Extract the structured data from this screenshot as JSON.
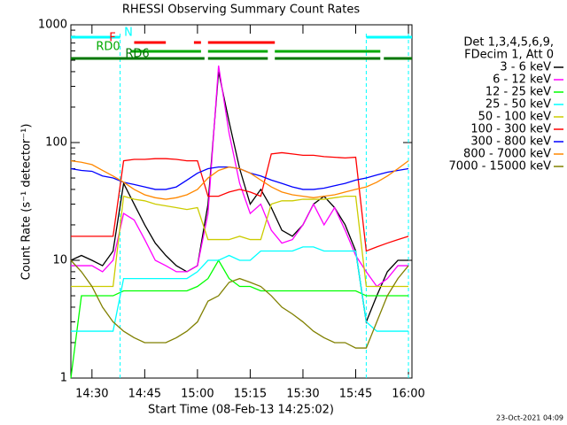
{
  "chart_data": {
    "type": "line",
    "title": "RHESSI Observing Summary Count Rates",
    "xlabel": "Start Time (08-Feb-13 14:25:02)",
    "ylabel": "Count Rate (s⁻¹ detector⁻¹)",
    "footer": "23-Oct-2021 04:09",
    "legend_header": [
      "Det 1,3,4,5,6,9,",
      "FDecim 1, Att 0"
    ],
    "ylog": true,
    "ylim": [
      1,
      1000
    ],
    "yticks": [
      1,
      10,
      100,
      1000
    ],
    "xlim": [
      "14:24",
      "16:01"
    ],
    "xticks": [
      "14:30",
      "14:45",
      "15:00",
      "15:15",
      "15:30",
      "15:45",
      "16:00"
    ],
    "vlines": [
      "14:38",
      "15:48",
      "16:00"
    ],
    "flags": [
      {
        "label": "N",
        "color": "#00ffff",
        "segments": [
          [
            "14:24",
            "14:38"
          ],
          [
            "15:48",
            "16:01"
          ]
        ]
      },
      {
        "label": "F",
        "color": "#ff0000",
        "segments": [
          [
            "14:42",
            "14:51"
          ],
          [
            "14:59",
            "15:01"
          ],
          [
            "15:03",
            "15:22"
          ]
        ]
      },
      {
        "label": "RD0",
        "color": "#00aa00",
        "segments": [
          [
            "14:41",
            "15:01"
          ],
          [
            "15:03",
            "15:20"
          ],
          [
            "15:22",
            "15:52"
          ]
        ]
      },
      {
        "label": "RD6",
        "color": "#007700",
        "segments": [
          [
            "14:24",
            "15:02"
          ],
          [
            "15:03",
            "15:20"
          ],
          [
            "15:22",
            "15:52"
          ],
          [
            "15:53",
            "16:01"
          ]
        ]
      }
    ],
    "x": [
      "14:24",
      "14:27",
      "14:30",
      "14:33",
      "14:36",
      "14:39",
      "14:42",
      "14:45",
      "14:48",
      "14:51",
      "14:54",
      "14:57",
      "15:00",
      "15:03",
      "15:06",
      "15:09",
      "15:12",
      "15:15",
      "15:18",
      "15:21",
      "15:24",
      "15:27",
      "15:30",
      "15:33",
      "15:36",
      "15:39",
      "15:42",
      "15:45",
      "15:48",
      "15:51",
      "15:54",
      "15:57",
      "16:00"
    ],
    "series": [
      {
        "name": "3 - 6 keV",
        "color": "#000000",
        "values": [
          10,
          11,
          10,
          9,
          12,
          45,
          30,
          20,
          14,
          11,
          9,
          8,
          9,
          30,
          400,
          150,
          60,
          30,
          40,
          28,
          18,
          16,
          20,
          30,
          35,
          28,
          20,
          12,
          3,
          5,
          8,
          10,
          10
        ]
      },
      {
        "name": "6 - 12 keV",
        "color": "#ff00ff",
        "values": [
          9,
          9,
          9,
          8,
          10,
          25,
          22,
          15,
          10,
          9,
          8,
          8,
          9,
          25,
          450,
          120,
          45,
          25,
          30,
          18,
          14,
          15,
          20,
          30,
          20,
          28,
          18,
          11,
          8,
          6,
          7,
          9,
          9
        ]
      },
      {
        "name": "12 - 25 keV",
        "color": "#00ff00",
        "values": [
          1,
          5,
          5,
          5,
          5,
          5.5,
          5.5,
          5.5,
          5.5,
          5.5,
          5.5,
          5.5,
          6,
          7,
          10,
          7,
          6,
          6,
          5.5,
          5.5,
          5.5,
          5.5,
          5.5,
          5.5,
          5.5,
          5.5,
          5.5,
          5.5,
          5,
          5,
          5,
          5,
          5
        ]
      },
      {
        "name": "25 - 50 keV",
        "color": "#00ffff",
        "values": [
          2.5,
          2.5,
          2.5,
          2.5,
          2.5,
          7,
          7,
          7,
          7,
          7,
          7,
          7,
          8,
          10,
          10,
          11,
          10,
          10,
          12,
          12,
          12,
          12,
          13,
          13,
          12,
          12,
          12,
          12,
          3,
          2.5,
          2.5,
          2.5,
          2.5
        ]
      },
      {
        "name": "50 - 100 keV",
        "color": "#cccc00",
        "values": [
          6,
          6,
          6,
          6,
          6,
          35,
          33,
          32,
          30,
          29,
          28,
          27,
          28,
          15,
          15,
          15,
          16,
          15,
          15,
          30,
          32,
          32,
          33,
          33,
          33,
          34,
          35,
          35,
          6,
          6,
          6,
          6,
          6
        ]
      },
      {
        "name": "100 - 300 keV",
        "color": "#ff0000",
        "values": [
          16,
          16,
          16,
          16,
          16,
          70,
          72,
          72,
          73,
          73,
          72,
          70,
          70,
          35,
          35,
          38,
          40,
          38,
          35,
          80,
          82,
          80,
          78,
          78,
          76,
          75,
          74,
          75,
          12,
          13,
          14,
          15,
          16
        ]
      },
      {
        "name": "300 - 800 keV",
        "color": "#0000ff",
        "values": [
          60,
          58,
          57,
          52,
          50,
          46,
          44,
          42,
          40,
          40,
          42,
          48,
          55,
          60,
          62,
          62,
          60,
          55,
          52,
          48,
          45,
          42,
          40,
          40,
          41,
          43,
          45,
          48,
          50,
          53,
          56,
          58,
          60
        ]
      },
      {
        "name": "800 - 7000 keV",
        "color": "#ff8800",
        "values": [
          70,
          68,
          65,
          58,
          52,
          46,
          40,
          36,
          34,
          33,
          34,
          36,
          40,
          50,
          58,
          62,
          60,
          55,
          48,
          42,
          38,
          36,
          35,
          34,
          35,
          36,
          38,
          40,
          42,
          46,
          52,
          60,
          70
        ]
      },
      {
        "name": "7000 - 15000 keV",
        "color": "#808000",
        "values": [
          10,
          8,
          6,
          4,
          3,
          2.5,
          2.2,
          2,
          2,
          2,
          2.2,
          2.5,
          3,
          4.5,
          5,
          6.5,
          7,
          6.5,
          6,
          5,
          4,
          3.5,
          3,
          2.5,
          2.2,
          2,
          2,
          1.8,
          1.8,
          3,
          5,
          7,
          9
        ]
      }
    ]
  }
}
